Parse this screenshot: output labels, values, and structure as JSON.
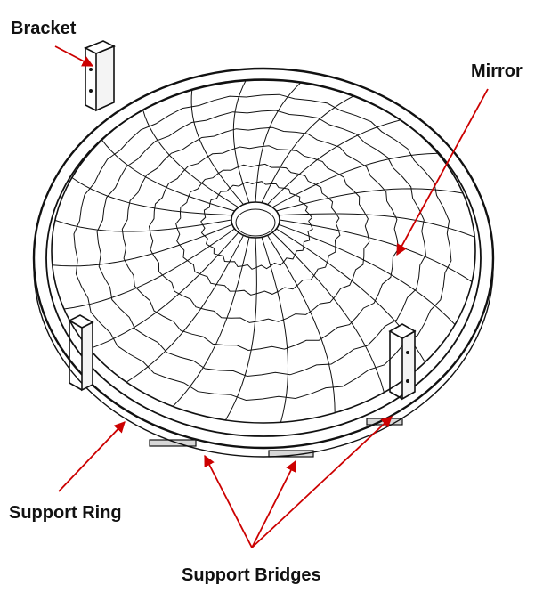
{
  "labels": {
    "bracket": "Bracket",
    "mirror": "Mirror",
    "support_ring": "Support Ring",
    "support_bridges": "Support Bridges"
  },
  "colors": {
    "line": "#111111",
    "arrow": "#cc0000",
    "background": "#ffffff",
    "bracket_fill": "#f4f4f4"
  }
}
